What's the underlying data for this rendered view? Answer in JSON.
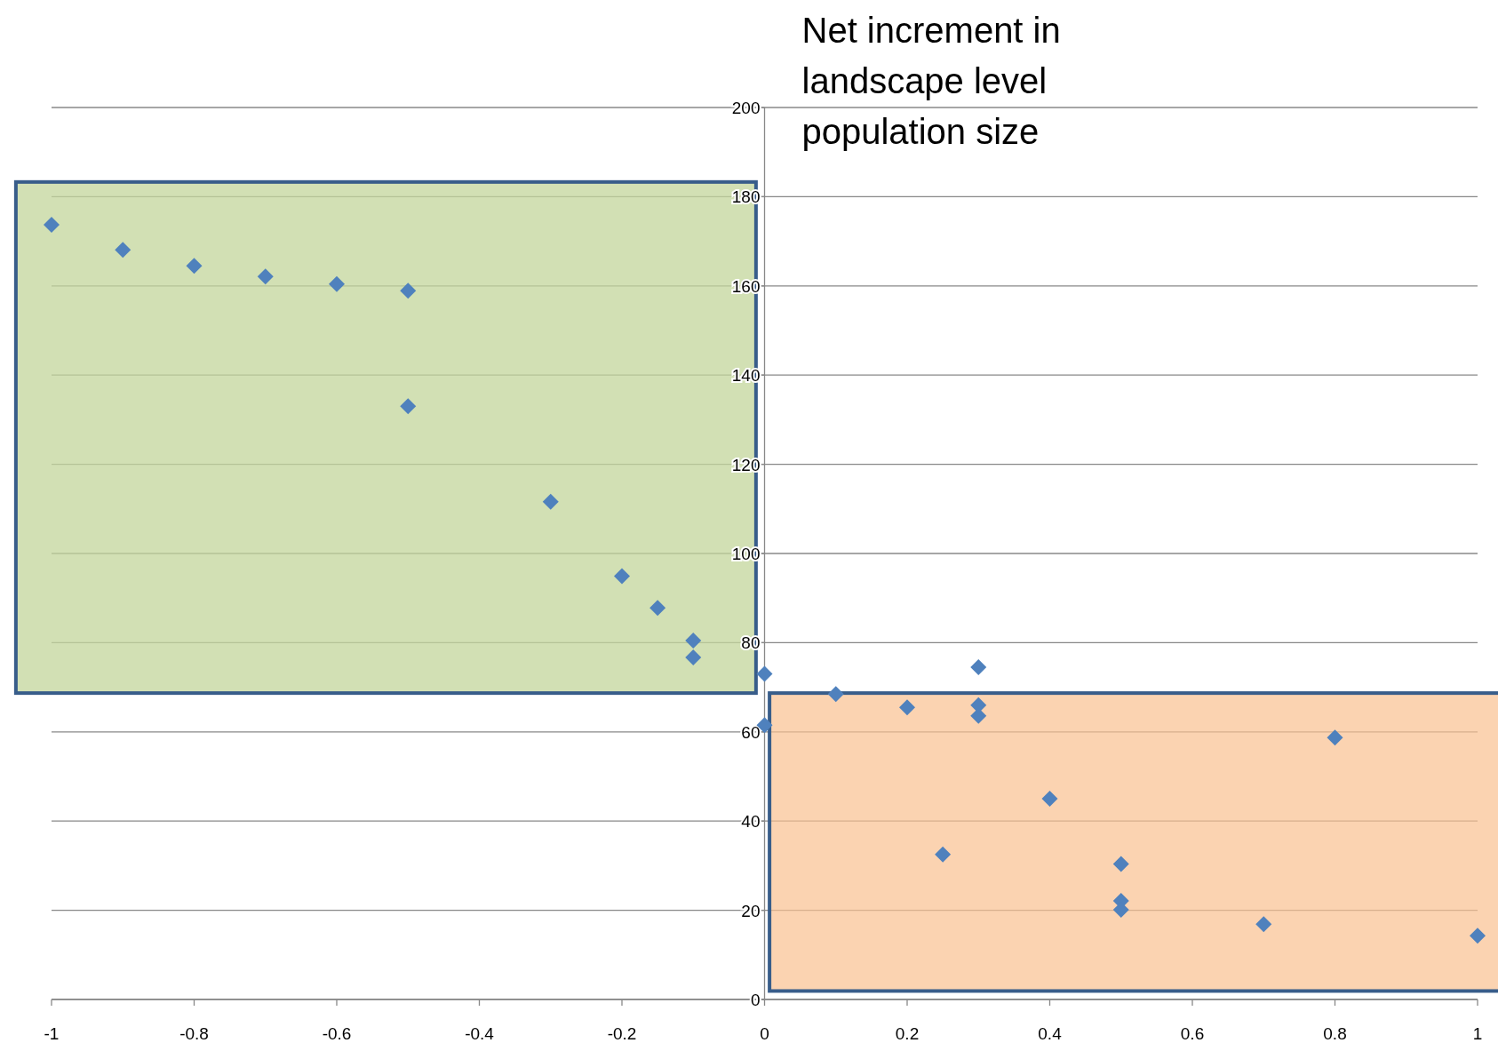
{
  "chart_data": {
    "type": "scatter",
    "ylabel": "Net increment in landscape level population size",
    "xlim": [
      -1,
      1
    ],
    "xticks": [
      -1,
      -0.8,
      -0.6,
      -0.4,
      -0.2,
      0,
      0.2,
      0.4,
      0.6,
      0.8,
      1
    ],
    "ylim": [
      0,
      200
    ],
    "yticks": [
      0,
      20,
      40,
      60,
      80,
      100,
      120,
      140,
      160,
      180,
      200
    ],
    "grid": "y",
    "marker": "diamond",
    "series": [
      {
        "color": "#4f81bd",
        "x": [
          -1,
          -0.9,
          -0.8,
          -0.7,
          -0.6,
          -0.5,
          -0.5,
          -0.3,
          -0.2,
          -0.15,
          -0.1,
          -0.1,
          0,
          0,
          0.1,
          0.2,
          0.25,
          0.3,
          0.3,
          0.3,
          0.4,
          0.5,
          0.5,
          0.5,
          0.7,
          0.8,
          1
        ],
        "values": [
          173.7,
          168.1,
          164.5,
          162.1,
          160.4,
          158.9,
          133,
          111.6,
          94.9,
          87.8,
          80.5,
          76.7,
          73,
          61.5,
          68.5,
          65.5,
          32.5,
          74.5,
          66,
          63.6,
          45,
          30.4,
          22.1,
          20.1,
          16.9,
          58.7,
          14.3
        ]
      }
    ]
  }
}
